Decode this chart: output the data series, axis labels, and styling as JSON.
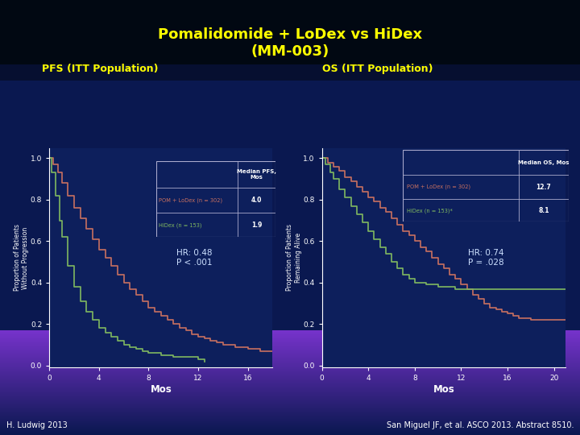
{
  "title_line1": "Pomalidomide + LoDex vs HiDex",
  "title_line2": "(MM-003)",
  "title_color": "#FFFF00",
  "bg_top_color": "#020818",
  "bg_mid_color": "#0a1850",
  "bg_bot_color": "#7733cc",
  "panel_bg_color": "#0d1f5c",
  "panel_left_label": "PFS (ITT Population)",
  "panel_right_label": "OS (ITT Population)",
  "panel_label_color": "#FFFF00",
  "pom_color": "#c87060",
  "hidex_color": "#80b860",
  "xlabel": "Mos",
  "ylabel_pfs": "Proportion of Patients\nWithout Progression",
  "ylabel_os": "Proportion of Patients\nRemaining Alive",
  "white": "#ffffff",
  "hr_text_pfs": "HR: 0.48\nP < .001",
  "hr_text_os": "HR: 0.74\nP = .028",
  "table_bg": "#0d1f5c",
  "table_border": "#aaaacc",
  "footer_left": "H. Ludwig 2013",
  "footer_right": "San Miguel JF, et al. ASCO 2013. Abstract 8510."
}
